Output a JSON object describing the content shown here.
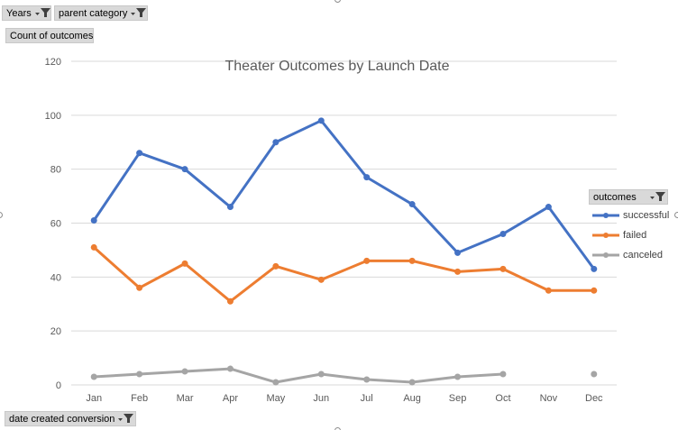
{
  "pivot": {
    "years_label": "Years",
    "parent_category_label": "parent category",
    "values_label": "Count of outcomes",
    "axis_field_label": "date created conversion",
    "legend_field_label": "outcomes"
  },
  "colors": {
    "successful": "#4472c4",
    "failed": "#ed7d31",
    "canceled": "#a5a5a5",
    "gridline": "#d9d9d9",
    "text": "#595959",
    "button_bg": "#d9d9d9"
  },
  "chart_data": {
    "type": "line",
    "title": "Theater Outcomes by Launch Date",
    "xlabel": "",
    "ylabel": "",
    "categories": [
      "Jan",
      "Feb",
      "Mar",
      "Apr",
      "May",
      "Jun",
      "Jul",
      "Aug",
      "Sep",
      "Oct",
      "Nov",
      "Dec"
    ],
    "ylim": [
      0,
      120
    ],
    "yticks": [
      0,
      20,
      40,
      60,
      80,
      100,
      120
    ],
    "grid": true,
    "legend_position": "right",
    "series": [
      {
        "name": "successful",
        "color": "#4472c4",
        "values": [
          61,
          86,
          80,
          66,
          90,
          98,
          77,
          67,
          49,
          56,
          66,
          43
        ]
      },
      {
        "name": "failed",
        "color": "#ed7d31",
        "values": [
          51,
          36,
          45,
          31,
          44,
          39,
          46,
          46,
          42,
          43,
          35,
          35
        ]
      },
      {
        "name": "canceled",
        "color": "#a5a5a5",
        "values": [
          3,
          4,
          5,
          6,
          1,
          4,
          2,
          1,
          3,
          4,
          null,
          4
        ]
      }
    ]
  }
}
